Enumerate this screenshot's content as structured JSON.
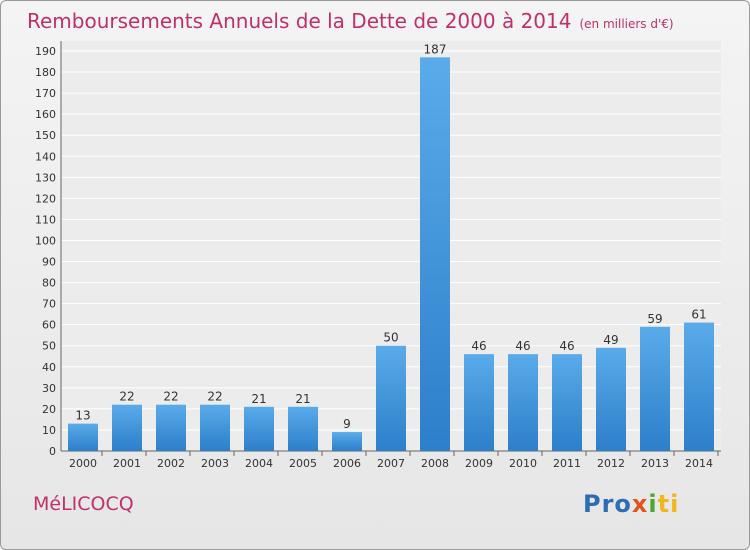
{
  "title": "Remboursements Annuels de la Dette de 2000 à 2014",
  "unit": "(en milliers d'€)",
  "commune": "MéLICOCQ",
  "brand": {
    "p1": "Pro",
    "p2": "x",
    "p3": "i",
    "p4": "ti"
  },
  "colors": {
    "title": "#c0306a",
    "bar_top": "#5aabea",
    "bar_bottom": "#2c7fc9"
  },
  "chart_data": {
    "type": "bar",
    "title": "Remboursements Annuels de la Dette de 2000 à 2014",
    "xlabel": "",
    "ylabel": "",
    "categories": [
      "2000",
      "2001",
      "2002",
      "2003",
      "2004",
      "2005",
      "2006",
      "2007",
      "2008",
      "2009",
      "2010",
      "2011",
      "2012",
      "2013",
      "2014"
    ],
    "values": [
      13,
      22,
      22,
      22,
      21,
      21,
      9,
      50,
      187,
      46,
      46,
      46,
      49,
      59,
      61
    ],
    "ylim": [
      0,
      190
    ],
    "yticks": [
      0,
      10,
      20,
      30,
      40,
      50,
      60,
      70,
      80,
      90,
      100,
      110,
      120,
      130,
      140,
      150,
      160,
      170,
      180,
      190
    ],
    "grid": true,
    "legend": "none"
  }
}
